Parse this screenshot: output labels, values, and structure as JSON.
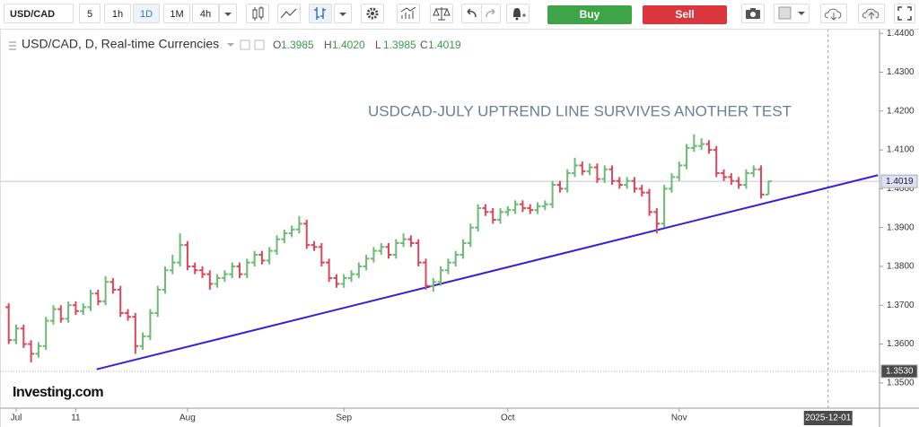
{
  "toolbar": {
    "symbol": "USD/CAD",
    "intervals": [
      "5",
      "1h",
      "1D",
      "1M",
      "4h"
    ],
    "active_interval": "1D",
    "buy": "Buy",
    "sell": "Sell"
  },
  "chart_data": {
    "type": "ohlc",
    "title": "USD/CAD, D, Real-time Currencies",
    "ohlc_legend": [
      {
        "key": "O",
        "value": "1.3985"
      },
      {
        "key": "H",
        "value": "1.4020"
      },
      {
        "key": "L",
        "value": "1.3985"
      },
      {
        "key": "C",
        "value": "1.4019"
      }
    ],
    "annotation": "USDCAD-JULY UPTREND LINE SURVIVES ANOTHER TEST",
    "watermark": "Investing.com",
    "up_color": "#6cba75",
    "down_color": "#d9475a",
    "open": [
      1.3695,
      1.361,
      1.364,
      1.36,
      1.3575,
      1.3595,
      1.366,
      1.369,
      1.3665,
      1.37,
      1.3685,
      1.3695,
      1.373,
      1.371,
      1.376,
      1.374,
      1.368,
      1.367,
      1.3595,
      1.362,
      1.368,
      1.374,
      1.379,
      1.381,
      1.3855,
      1.38,
      1.379,
      1.378,
      1.3755,
      1.377,
      1.378,
      1.38,
      1.378,
      1.381,
      1.383,
      1.3815,
      1.384,
      1.387,
      1.3885,
      1.3895,
      1.391,
      1.3855,
      1.385,
      1.381,
      1.377,
      1.3755,
      1.377,
      1.378,
      1.38,
      1.382,
      1.384,
      1.385,
      1.383,
      1.386,
      1.387,
      1.386,
      1.381,
      1.375,
      1.376,
      1.379,
      1.381,
      1.383,
      1.386,
      1.39,
      1.395,
      1.394,
      1.392,
      1.394,
      1.3945,
      1.396,
      1.395,
      1.3945,
      1.3955,
      1.396,
      1.401,
      1.4,
      1.404,
      1.406,
      1.4045,
      1.4055,
      1.4025,
      1.405,
      1.402,
      1.401,
      1.402,
      1.4,
      1.399,
      1.394,
      1.391,
      1.4,
      1.403,
      1.406,
      1.4105,
      1.411,
      1.4115,
      1.41,
      1.404,
      1.403,
      1.402,
      1.401,
      1.404,
      1.405,
      1.3985
    ],
    "high": [
      1.3705,
      1.365,
      1.365,
      1.361,
      1.3605,
      1.367,
      1.37,
      1.37,
      1.371,
      1.371,
      1.3705,
      1.374,
      1.374,
      1.3775,
      1.377,
      1.375,
      1.369,
      1.368,
      1.363,
      1.369,
      1.375,
      1.38,
      1.383,
      1.3885,
      1.3865,
      1.381,
      1.38,
      1.379,
      1.378,
      1.379,
      1.381,
      1.381,
      1.382,
      1.384,
      1.384,
      1.385,
      1.388,
      1.3895,
      1.3905,
      1.393,
      1.392,
      1.3865,
      1.386,
      1.382,
      1.378,
      1.378,
      1.379,
      1.381,
      1.383,
      1.385,
      1.386,
      1.386,
      1.387,
      1.3885,
      1.388,
      1.387,
      1.382,
      1.377,
      1.38,
      1.382,
      1.384,
      1.387,
      1.391,
      1.396,
      1.396,
      1.395,
      1.395,
      1.3955,
      1.397,
      1.397,
      1.396,
      1.3965,
      1.397,
      1.402,
      1.402,
      1.405,
      1.408,
      1.407,
      1.4065,
      1.4065,
      1.406,
      1.406,
      1.403,
      1.403,
      1.403,
      1.401,
      1.4,
      1.395,
      1.401,
      1.404,
      1.407,
      1.4115,
      1.414,
      1.413,
      1.4125,
      1.411,
      1.405,
      1.404,
      1.403,
      1.405,
      1.406,
      1.406,
      1.402
    ],
    "low": [
      1.36,
      1.36,
      1.359,
      1.3553,
      1.3565,
      1.3585,
      1.365,
      1.3655,
      1.3655,
      1.3675,
      1.3675,
      1.3685,
      1.37,
      1.37,
      1.373,
      1.367,
      1.366,
      1.3575,
      1.3585,
      1.361,
      1.367,
      1.373,
      1.378,
      1.38,
      1.379,
      1.378,
      1.377,
      1.374,
      1.3745,
      1.376,
      1.377,
      1.377,
      1.377,
      1.38,
      1.3805,
      1.3805,
      1.383,
      1.386,
      1.3875,
      1.3885,
      1.3845,
      1.384,
      1.38,
      1.376,
      1.3745,
      1.3745,
      1.376,
      1.377,
      1.379,
      1.381,
      1.383,
      1.382,
      1.382,
      1.385,
      1.385,
      1.38,
      1.374,
      1.3735,
      1.375,
      1.378,
      1.38,
      1.382,
      1.385,
      1.389,
      1.393,
      1.391,
      1.391,
      1.393,
      1.3935,
      1.394,
      1.3935,
      1.3935,
      1.3945,
      1.395,
      1.399,
      1.399,
      1.403,
      1.4035,
      1.4035,
      1.4015,
      1.4015,
      1.401,
      1.4,
      1.4,
      1.399,
      1.398,
      1.393,
      1.3885,
      1.39,
      1.399,
      1.402,
      1.405,
      1.4095,
      1.41,
      1.409,
      1.403,
      1.402,
      1.401,
      1.4,
      1.4,
      1.403,
      1.3975,
      1.3985
    ],
    "close": [
      1.361,
      1.364,
      1.36,
      1.3575,
      1.3595,
      1.366,
      1.369,
      1.3665,
      1.37,
      1.3685,
      1.3695,
      1.373,
      1.371,
      1.376,
      1.374,
      1.368,
      1.367,
      1.3595,
      1.362,
      1.368,
      1.374,
      1.379,
      1.381,
      1.3855,
      1.38,
      1.379,
      1.378,
      1.3755,
      1.377,
      1.378,
      1.38,
      1.378,
      1.381,
      1.383,
      1.3815,
      1.384,
      1.387,
      1.3885,
      1.3895,
      1.391,
      1.3855,
      1.385,
      1.381,
      1.377,
      1.3755,
      1.377,
      1.378,
      1.38,
      1.382,
      1.384,
      1.385,
      1.383,
      1.386,
      1.387,
      1.386,
      1.381,
      1.375,
      1.376,
      1.379,
      1.381,
      1.383,
      1.386,
      1.39,
      1.395,
      1.394,
      1.392,
      1.394,
      1.3945,
      1.396,
      1.395,
      1.3945,
      1.3955,
      1.396,
      1.401,
      1.4,
      1.404,
      1.406,
      1.4045,
      1.4055,
      1.4025,
      1.405,
      1.402,
      1.401,
      1.402,
      1.4,
      1.399,
      1.394,
      1.391,
      1.4,
      1.403,
      1.406,
      1.4105,
      1.411,
      1.4115,
      1.41,
      1.404,
      1.403,
      1.402,
      1.401,
      1.404,
      1.405,
      1.3985,
      1.4019
    ],
    "xlim": [
      -1.17,
      116.9
    ],
    "xticks": [
      {
        "value": 1,
        "label": "Jul"
      },
      {
        "value": 9,
        "label": "11"
      },
      {
        "value": 24,
        "label": "Aug"
      },
      {
        "value": 45,
        "label": "Sep"
      },
      {
        "value": 67,
        "label": "Oct"
      },
      {
        "value": 90,
        "label": "Nov"
      }
    ],
    "x_marker": {
      "value": 110,
      "label": "2025-12-01"
    },
    "ylim": [
      1.3435,
      1.4412
    ],
    "yticks": [
      {
        "value": 1.35,
        "label": "1.3500"
      },
      {
        "value": 1.36,
        "label": "1.3600"
      },
      {
        "value": 1.37,
        "label": "1.3700"
      },
      {
        "value": 1.38,
        "label": "1.3800"
      },
      {
        "value": 1.39,
        "label": "1.3900"
      },
      {
        "value": 1.4,
        "label": "1.4000"
      },
      {
        "value": 1.41,
        "label": "1.4100"
      },
      {
        "value": 1.42,
        "label": "1.4200"
      },
      {
        "value": 1.43,
        "label": "1.4300"
      },
      {
        "value": 1.44,
        "label": "1.4400"
      }
    ],
    "price_lines": [
      {
        "value": 1.4019,
        "label": "1.4019",
        "color": "#c4c4ee",
        "box_color": "#dfe0f7",
        "text_color": "#222"
      },
      {
        "value": 1.353,
        "label": "1.3530",
        "color": "#b5b5b5",
        "box_color": "#4a4a4a",
        "text_color": "#fff"
      }
    ],
    "trend_line": {
      "x": [
        11.8,
        116.7
      ],
      "y": [
        1.3535,
        1.4035
      ],
      "color": "#3a1fd9"
    }
  }
}
